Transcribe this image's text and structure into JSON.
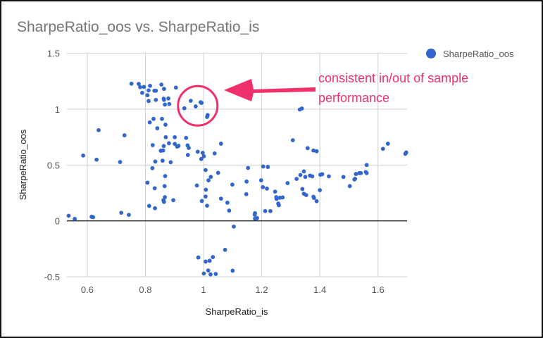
{
  "chart_data": {
    "type": "scatter",
    "title": "SharpeRatio_oos vs. SharpeRatio_is",
    "xlabel": "SharpeRatio_is",
    "ylabel": "SharpeRatio_oos",
    "xlim": [
      0.53,
      1.7
    ],
    "ylim": [
      -0.5,
      1.5
    ],
    "xticks": [
      0.6,
      0.8,
      1.0,
      1.2,
      1.4,
      1.6
    ],
    "xtick_labels": [
      "0.6",
      "0.8",
      "1",
      "1.2",
      "1.4",
      "1.6"
    ],
    "yticks": [
      -0.5,
      0,
      0.5,
      1,
      1.5
    ],
    "ytick_labels": [
      "-0.5",
      "0",
      "0.5",
      "1",
      "1.5"
    ],
    "grid": true,
    "legend": {
      "position": "top-right",
      "entries": [
        "SharpeRatio_oos"
      ]
    },
    "series": [
      {
        "name": "SharpeRatio_oos",
        "color": "#3366cc",
        "points": [
          [
            0.752,
            1.228
          ],
          [
            0.777,
            1.226
          ],
          [
            0.782,
            1.197
          ],
          [
            0.795,
            1.199
          ],
          [
            0.816,
            1.209
          ],
          [
            0.789,
            1.146
          ],
          [
            0.811,
            1.168
          ],
          [
            0.831,
            1.165
          ],
          [
            0.836,
            1.165
          ],
          [
            0.855,
            1.22
          ],
          [
            0.864,
            1.182
          ],
          [
            0.905,
            1.193
          ],
          [
            0.807,
            1.125
          ],
          [
            0.811,
            1.073
          ],
          [
            0.836,
            1.083
          ],
          [
            0.863,
            1.094
          ],
          [
            0.864,
            1.083
          ],
          [
            0.879,
            1.096
          ],
          [
            0.867,
            1.041
          ],
          [
            0.882,
            1.046
          ],
          [
            0.934,
            1.008
          ],
          [
            0.956,
            1.075
          ],
          [
            0.973,
            1.025
          ],
          [
            0.99,
            1.062
          ],
          [
            0.993,
            1.056
          ],
          [
            1.014,
            0.947
          ],
          [
            1.012,
            0.93
          ],
          [
            0.828,
            0.913
          ],
          [
            0.857,
            0.913
          ],
          [
            0.815,
            0.882
          ],
          [
            0.869,
            0.861
          ],
          [
            0.841,
            0.829
          ],
          [
            0.639,
            0.812
          ],
          [
            0.728,
            0.766
          ],
          [
            0.586,
            0.585
          ],
          [
            0.632,
            0.548
          ],
          [
            0.713,
            0.527
          ],
          [
            0.87,
            0.749
          ],
          [
            0.901,
            0.749
          ],
          [
            0.94,
            0.743
          ],
          [
            0.825,
            0.678
          ],
          [
            0.863,
            0.67
          ],
          [
            0.881,
            0.695
          ],
          [
            0.901,
            0.689
          ],
          [
            0.909,
            0.665
          ],
          [
            0.914,
            0.672
          ],
          [
            0.945,
            0.676
          ],
          [
            0.949,
            0.653
          ],
          [
            0.853,
            0.628
          ],
          [
            0.861,
            0.63
          ],
          [
            0.946,
            0.59
          ],
          [
            0.98,
            0.619
          ],
          [
            0.997,
            0.609
          ],
          [
            1.001,
            0.579
          ],
          [
            0.992,
            0.554
          ],
          [
            1.038,
            0.604
          ],
          [
            1.06,
            0.691
          ],
          [
            0.834,
            0.531
          ],
          [
            0.859,
            0.539
          ],
          [
            0.887,
            0.525
          ],
          [
            0.824,
            0.472
          ],
          [
            0.868,
            0.401
          ],
          [
            1.007,
            0.455
          ],
          [
            1.05,
            0.43
          ],
          [
            1.025,
            0.394
          ],
          [
            1.017,
            0.363
          ],
          [
            0.807,
            0.342
          ],
          [
            0.832,
            0.292
          ],
          [
            0.866,
            0.311
          ],
          [
            0.867,
            0.212
          ],
          [
            0.862,
            0.185
          ],
          [
            0.864,
            0.17
          ],
          [
            0.896,
            0.185
          ],
          [
            0.813,
            0.134
          ],
          [
            0.833,
            0.113
          ],
          [
            0.536,
            0.046
          ],
          [
            0.557,
            0.018
          ],
          [
            0.615,
            0.037
          ],
          [
            0.62,
            0.033
          ],
          [
            0.717,
            0.073
          ],
          [
            0.743,
            0.054
          ],
          [
            0.977,
            0.317
          ],
          [
            1.008,
            0.279
          ],
          [
            1.007,
            0.218
          ],
          [
            0.994,
            0.178
          ],
          [
            1.012,
            0.136
          ],
          [
            1.06,
            0.199
          ],
          [
            0.982,
            -0.328
          ],
          [
            1.007,
            -0.364
          ],
          [
            1.021,
            -0.357
          ],
          [
            1.032,
            -0.324
          ],
          [
            1.016,
            -0.444
          ],
          [
            1.001,
            -0.471
          ],
          [
            1.024,
            -0.479
          ],
          [
            1.042,
            -0.475
          ],
          [
            1.074,
            -0.259
          ],
          [
            1.1,
            -0.446
          ],
          [
            1.307,
            0.722
          ],
          [
            1.358,
            0.651
          ],
          [
            1.378,
            0.63
          ],
          [
            1.389,
            0.623
          ],
          [
            1.617,
            0.645
          ],
          [
            1.634,
            0.691
          ],
          [
            1.694,
            0.6
          ],
          [
            1.697,
            0.612
          ],
          [
            1.153,
            0.474
          ],
          [
            1.205,
            0.487
          ],
          [
            1.221,
            0.483
          ],
          [
            1.148,
            0.352
          ],
          [
            1.099,
            0.325
          ],
          [
            1.198,
            0.363
          ],
          [
            1.204,
            0.302
          ],
          [
            1.218,
            0.289
          ],
          [
            1.147,
            0.239
          ],
          [
            1.246,
            0.262
          ],
          [
            1.25,
            0.212
          ],
          [
            1.251,
            0.197
          ],
          [
            1.263,
            0.207
          ],
          [
            1.272,
            0.21
          ],
          [
            1.257,
            0.155
          ],
          [
            1.259,
            0.14
          ],
          [
            1.082,
            0.163
          ],
          [
            1.088,
            0.092
          ],
          [
            1.177,
            0.069
          ],
          [
            1.176,
            0.056
          ],
          [
            1.177,
            0.021
          ],
          [
            1.184,
            0.025
          ],
          [
            1.212,
            0.088
          ],
          [
            1.23,
            0.088
          ],
          [
            1.104,
            -0.051
          ],
          [
            1.289,
            0.338
          ],
          [
            1.32,
            0.376
          ],
          [
            1.333,
            0.411
          ],
          [
            1.345,
            0.443
          ],
          [
            1.35,
            0.394
          ],
          [
            1.366,
            0.405
          ],
          [
            1.374,
            0.399
          ],
          [
            1.34,
            0.285
          ],
          [
            1.345,
            0.243
          ],
          [
            1.353,
            0.231
          ],
          [
            1.378,
            0.216
          ],
          [
            1.38,
            0.205
          ],
          [
            1.389,
            0.176
          ],
          [
            1.4,
            0.275
          ],
          [
            1.402,
            0.413
          ],
          [
            1.408,
            0.418
          ],
          [
            1.431,
            0.399
          ],
          [
            1.481,
            0.393
          ],
          [
            1.503,
            0.311
          ],
          [
            1.519,
            0.371
          ],
          [
            1.521,
            0.377
          ],
          [
            1.524,
            0.42
          ],
          [
            1.536,
            0.428
          ],
          [
            1.541,
            0.428
          ],
          [
            1.558,
            0.437
          ],
          [
            1.561,
            0.428
          ],
          [
            1.561,
            0.5
          ],
          [
            1.331,
            0.997
          ],
          [
            1.338,
            1.006
          ]
        ]
      }
    ],
    "annotations": [
      {
        "text_lines": [
          "consistent in/out of sample",
          "performance"
        ],
        "color": "#f0306a",
        "circle_center": [
          0.98,
          1.03
        ],
        "arrow_to": [
          1.07,
          1.17
        ]
      }
    ]
  }
}
